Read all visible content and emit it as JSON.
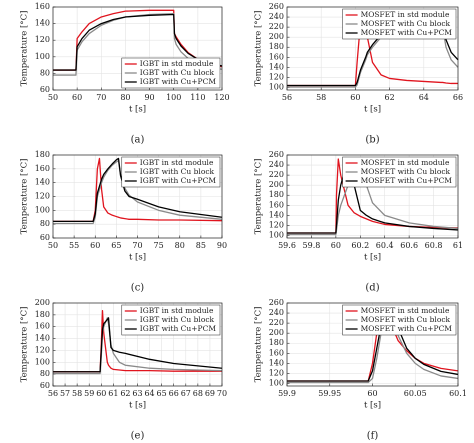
{
  "chart_data": [
    {
      "type": "line",
      "label": "(a)",
      "xlabel": "t [s]",
      "ylabel": "Temperature [°C]",
      "legend": "lower right",
      "grid": true,
      "xlim": [
        50,
        120
      ],
      "xticks": [
        50,
        60,
        70,
        80,
        90,
        100,
        110,
        120
      ],
      "ylim": [
        60,
        160
      ],
      "yticks": [
        60,
        80,
        100,
        120,
        140,
        160
      ],
      "x": [
        50,
        59,
        59.5,
        60,
        62,
        65,
        70,
        75,
        80,
        90,
        100,
        100.3,
        101,
        103,
        106,
        110,
        115,
        120
      ],
      "series": [
        {
          "name": "IGBT in std module",
          "color": "#e0141e",
          "values": [
            84,
            84,
            84,
            122,
            130,
            140,
            148,
            152,
            155,
            156,
            156,
            128,
            124,
            115,
            105,
            97,
            91,
            88
          ]
        },
        {
          "name": "IGBT with Cu block",
          "color": "#8a8a8a",
          "values": [
            78,
            78,
            78,
            108,
            118,
            128,
            138,
            144,
            148,
            151,
            152,
            122,
            115,
            106,
            98,
            92,
            87,
            85
          ]
        },
        {
          "name": "IGBT with Cu+PCM",
          "color": "#000000",
          "values": [
            84,
            84,
            84,
            112,
            122,
            132,
            140,
            145,
            148,
            150,
            151,
            128,
            122,
            113,
            104,
            97,
            92,
            89
          ]
        }
      ]
    },
    {
      "type": "line",
      "label": "(b)",
      "xlabel": "t [s]",
      "ylabel": "Temperature [°C]",
      "legend": "upper right",
      "grid": true,
      "xlim": [
        56,
        66
      ],
      "xticks": [
        56,
        58,
        60,
        62,
        64,
        66
      ],
      "ylim": [
        95,
        260
      ],
      "yticks": [
        100,
        120,
        140,
        160,
        180,
        200,
        220,
        240,
        260
      ],
      "x": [
        56,
        60,
        60.1,
        60.3,
        60.6,
        60.7,
        61,
        61.5,
        62,
        63,
        64,
        65,
        65.1,
        65.3,
        65.6,
        66
      ],
      "series": [
        {
          "name": "MOSFET in std module",
          "color": "#e0141e",
          "values": [
            104,
            104,
            150,
            230,
            252,
            200,
            150,
            125,
            118,
            114,
            112,
            110,
            110,
            109,
            108,
            108
          ]
        },
        {
          "name": "MOSFET with Cu block",
          "color": "#8a8a8a",
          "values": [
            101,
            101,
            105,
            130,
            155,
            165,
            180,
            200,
            212,
            228,
            240,
            250,
            220,
            180,
            155,
            140
          ]
        },
        {
          "name": "MOSFET with Cu+PCM",
          "color": "#000000",
          "values": [
            104,
            104,
            110,
            135,
            160,
            170,
            185,
            205,
            218,
            232,
            243,
            252,
            230,
            195,
            170,
            155
          ]
        }
      ]
    },
    {
      "type": "line",
      "label": "(c)",
      "xlabel": "t [s]",
      "ylabel": "Temperature [°C]",
      "legend": "upper right",
      "grid": true,
      "xlim": [
        50,
        90
      ],
      "xticks": [
        50,
        55,
        60,
        65,
        70,
        75,
        80,
        85,
        90
      ],
      "ylim": [
        60,
        180
      ],
      "yticks": [
        60,
        80,
        100,
        120,
        140,
        160,
        180
      ],
      "x": [
        50,
        59.5,
        60,
        60.5,
        61,
        61.5,
        62,
        63,
        64,
        65,
        65.5,
        66,
        67,
        68,
        70,
        75,
        80,
        90
      ],
      "series": [
        {
          "name": "IGBT in std module",
          "color": "#e0141e",
          "values": [
            84,
            84,
            100,
            160,
            175,
            130,
            105,
            96,
            93,
            91,
            90,
            89,
            88,
            87,
            87,
            86,
            86,
            85
          ]
        },
        {
          "name": "IGBT with Cu block",
          "color": "#8a8a8a",
          "values": [
            81,
            81,
            90,
            120,
            130,
            140,
            148,
            158,
            165,
            170,
            172,
            150,
            132,
            122,
            112,
            100,
            93,
            87
          ]
        },
        {
          "name": "IGBT with Cu+PCM",
          "color": "#000000",
          "values": [
            84,
            84,
            95,
            125,
            135,
            145,
            152,
            160,
            167,
            173,
            175,
            150,
            128,
            120,
            116,
            105,
            98,
            90
          ]
        }
      ]
    },
    {
      "type": "line",
      "label": "(d)",
      "xlabel": "t [s]",
      "ylabel": "Temperature [°C]",
      "legend": "upper right",
      "grid": true,
      "xlim": [
        59.6,
        61
      ],
      "xticks": [
        59.6,
        59.8,
        60,
        60.2,
        60.4,
        60.6,
        60.8,
        61
      ],
      "ylim": [
        95,
        260
      ],
      "yticks": [
        100,
        120,
        140,
        160,
        180,
        200,
        220,
        240,
        260
      ],
      "x": [
        59.6,
        60,
        60.005,
        60.02,
        60.04,
        60.1,
        60.15,
        60.2,
        60.25,
        60.3,
        60.4,
        60.6,
        60.8,
        61
      ],
      "series": [
        {
          "name": "MOSFET in std module",
          "color": "#e0141e",
          "values": [
            105,
            105,
            180,
            252,
            220,
            160,
            145,
            138,
            133,
            128,
            122,
            118,
            116,
            115
          ]
        },
        {
          "name": "MOSFET with Cu block",
          "color": "#8a8a8a",
          "values": [
            102,
            102,
            110,
            140,
            160,
            200,
            225,
            245,
            200,
            165,
            140,
            125,
            118,
            114
          ]
        },
        {
          "name": "MOSFET with Cu+PCM",
          "color": "#000000",
          "values": [
            105,
            105,
            120,
            170,
            200,
            252,
            200,
            150,
            140,
            133,
            125,
            118,
            114,
            111
          ]
        }
      ]
    },
    {
      "type": "line",
      "label": "(e)",
      "xlabel": "t [s]",
      "ylabel": "Temperature [°C]",
      "legend": "upper right",
      "grid": true,
      "xlim": [
        56,
        70
      ],
      "xticks": [
        56,
        57,
        58,
        59,
        60,
        61,
        62,
        63,
        64,
        65,
        66,
        67,
        68,
        69,
        70
      ],
      "ylim": [
        60,
        200
      ],
      "yticks": [
        60,
        80,
        100,
        120,
        140,
        160,
        180,
        200
      ],
      "x": [
        56,
        59.9,
        60,
        60.1,
        60.2,
        60.5,
        60.6,
        60.8,
        61,
        61.5,
        62,
        64,
        66,
        70
      ],
      "series": [
        {
          "name": "IGBT in std module",
          "color": "#e0141e",
          "values": [
            84,
            84,
            130,
            187,
            150,
            100,
            95,
            90,
            88,
            87,
            86,
            86,
            85,
            85
          ]
        },
        {
          "name": "IGBT with Cu block",
          "color": "#8a8a8a",
          "values": [
            81,
            81,
            110,
            150,
            160,
            175,
            165,
            130,
            115,
            100,
            95,
            90,
            88,
            86
          ]
        },
        {
          "name": "IGBT with Cu+PCM",
          "color": "#000000",
          "values": [
            84,
            84,
            120,
            155,
            165,
            172,
            175,
            125,
            120,
            117,
            115,
            105,
            98,
            90
          ]
        }
      ]
    },
    {
      "type": "line",
      "label": "(f)",
      "xlabel": "t [s]",
      "ylabel": "Temperature [°C]",
      "legend": "upper right",
      "grid": true,
      "xlim": [
        59.9,
        60.1
      ],
      "xticks": [
        59.9,
        59.95,
        60,
        60.05,
        60.1
      ],
      "ylim": [
        95,
        260
      ],
      "yticks": [
        100,
        120,
        140,
        160,
        180,
        200,
        220,
        240,
        260
      ],
      "x": [
        59.9,
        59.995,
        60,
        60.005,
        60.01,
        60.015,
        60.02,
        60.025,
        60.03,
        60.04,
        60.05,
        60.06,
        60.08,
        60.1
      ],
      "series": [
        {
          "name": "MOSFET in std module",
          "color": "#e0141e",
          "values": [
            105,
            105,
            140,
            200,
            240,
            252,
            230,
            205,
            185,
            165,
            150,
            140,
            130,
            125
          ]
        },
        {
          "name": "MOSFET with Cu block",
          "color": "#8a8a8a",
          "values": [
            102,
            102,
            110,
            150,
            200,
            235,
            250,
            225,
            195,
            160,
            140,
            128,
            115,
            110
          ]
        },
        {
          "name": "MOSFET with Cu+PCM",
          "color": "#000000",
          "values": [
            105,
            105,
            125,
            170,
            215,
            240,
            252,
            245,
            210,
            170,
            150,
            138,
            124,
            118
          ]
        }
      ]
    }
  ]
}
